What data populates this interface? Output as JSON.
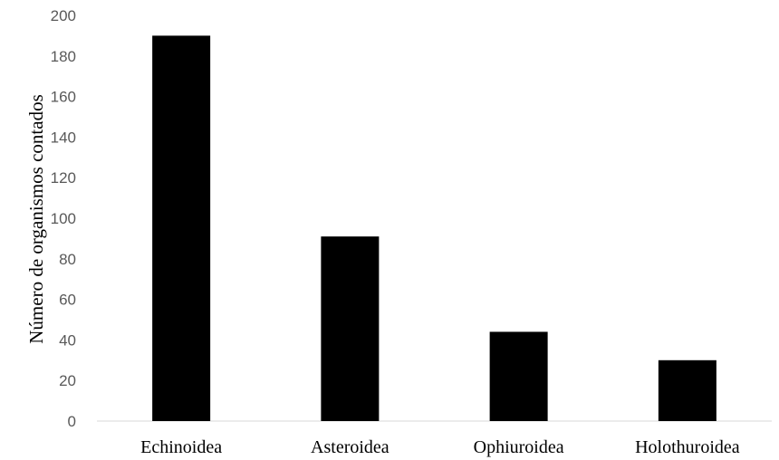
{
  "chart_data": {
    "type": "bar",
    "categories": [
      "Echinoidea",
      "Asteroidea",
      "Ophiuroidea",
      "Holothuroidea"
    ],
    "values": [
      190,
      91,
      44,
      30
    ],
    "title": "",
    "xlabel": "",
    "ylabel": "Número de organismos contados",
    "ylim": [
      0,
      200
    ],
    "yticks": [
      "0",
      "20",
      "40",
      "60",
      "80",
      "100",
      "120",
      "140",
      "160",
      "180",
      "200"
    ],
    "grid": false,
    "legend": "none",
    "colors": {
      "bar": "#000000",
      "axis": "#d9d9d9"
    }
  }
}
